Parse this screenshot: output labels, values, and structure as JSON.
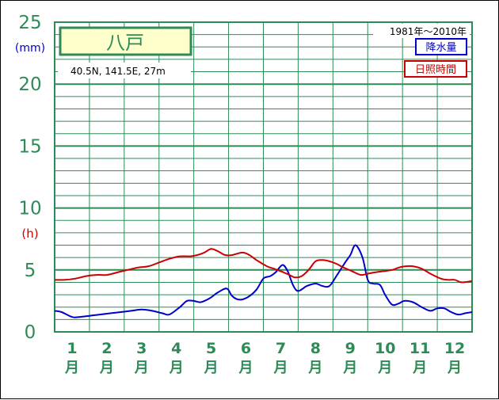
{
  "chart_data": {
    "type": "line",
    "station_name": "八戸",
    "location": "40.5N,  141.5E,  27m",
    "period": "1981年～2010年",
    "y_ticks": [
      "0",
      "5",
      "10",
      "15",
      "20",
      "25"
    ],
    "ylim": [
      0,
      25
    ],
    "unit_precip": "(mm)",
    "unit_sunshine": "(h)",
    "months": [
      "1",
      "2",
      "3",
      "4",
      "5",
      "6",
      "7",
      "8",
      "9",
      "10",
      "11",
      "12"
    ],
    "month_suffix": "月",
    "x_domain": [
      0,
      12
    ],
    "grid": true,
    "legend_position": "top-right",
    "colors": {
      "axis_text": "#2e8b57",
      "grid": "#2e8b57",
      "unit_precip": "#0000cc",
      "unit_sunshine": "#cc0000",
      "station_box_fill": "#ffffcc"
    },
    "series": [
      {
        "name": "降水量",
        "color": "#0000cc",
        "x": [
          0,
          0.2,
          0.5,
          0.7,
          1.0,
          1.3,
          1.6,
          1.9,
          2.2,
          2.5,
          2.8,
          3.1,
          3.3,
          3.6,
          3.8,
          4.0,
          4.2,
          4.45,
          4.7,
          4.95,
          5.1,
          5.3,
          5.55,
          5.8,
          6.0,
          6.2,
          6.35,
          6.55,
          6.7,
          6.85,
          7.0,
          7.25,
          7.5,
          7.7,
          7.9,
          8.1,
          8.35,
          8.5,
          8.65,
          8.85,
          9.0,
          9.15,
          9.35,
          9.5,
          9.7,
          9.9,
          10.05,
          10.3,
          10.55,
          10.8,
          11.0,
          11.2,
          11.4,
          11.6,
          11.8,
          12.0
        ],
        "values": [
          1.7,
          1.6,
          1.2,
          1.2,
          1.3,
          1.4,
          1.5,
          1.6,
          1.7,
          1.8,
          1.7,
          1.5,
          1.4,
          2.0,
          2.5,
          2.5,
          2.4,
          2.7,
          3.2,
          3.5,
          2.9,
          2.6,
          2.8,
          3.4,
          4.3,
          4.5,
          4.8,
          5.4,
          4.9,
          3.8,
          3.3,
          3.7,
          3.9,
          3.7,
          3.7,
          4.5,
          5.6,
          6.2,
          7.0,
          6.0,
          4.2,
          3.9,
          3.8,
          3.0,
          2.2,
          2.3,
          2.5,
          2.4,
          2.0,
          1.7,
          1.9,
          1.9,
          1.6,
          1.4,
          1.5,
          1.6
        ]
      },
      {
        "name": "日照時間",
        "color": "#cc0000",
        "x": [
          0,
          0.3,
          0.6,
          0.9,
          1.2,
          1.5,
          1.8,
          2.1,
          2.4,
          2.7,
          3.0,
          3.3,
          3.6,
          3.9,
          4.1,
          4.3,
          4.5,
          4.7,
          4.9,
          5.1,
          5.4,
          5.6,
          5.8,
          6.1,
          6.3,
          6.5,
          6.75,
          6.9,
          7.1,
          7.3,
          7.5,
          7.7,
          7.9,
          8.1,
          8.3,
          8.55,
          8.8,
          9.0,
          9.2,
          9.45,
          9.7,
          9.9,
          10.1,
          10.3,
          10.55,
          10.8,
          11.1,
          11.3,
          11.5,
          11.7,
          12.0
        ],
        "values": [
          4.2,
          4.2,
          4.3,
          4.5,
          4.6,
          4.6,
          4.8,
          5.0,
          5.2,
          5.3,
          5.6,
          5.9,
          6.1,
          6.1,
          6.2,
          6.4,
          6.7,
          6.5,
          6.2,
          6.2,
          6.4,
          6.2,
          5.8,
          5.3,
          5.1,
          4.9,
          4.6,
          4.4,
          4.5,
          5.0,
          5.7,
          5.8,
          5.7,
          5.5,
          5.2,
          4.9,
          4.6,
          4.7,
          4.8,
          4.9,
          5.0,
          5.2,
          5.3,
          5.3,
          5.1,
          4.7,
          4.3,
          4.2,
          4.2,
          4.0,
          4.1
        ]
      }
    ]
  }
}
